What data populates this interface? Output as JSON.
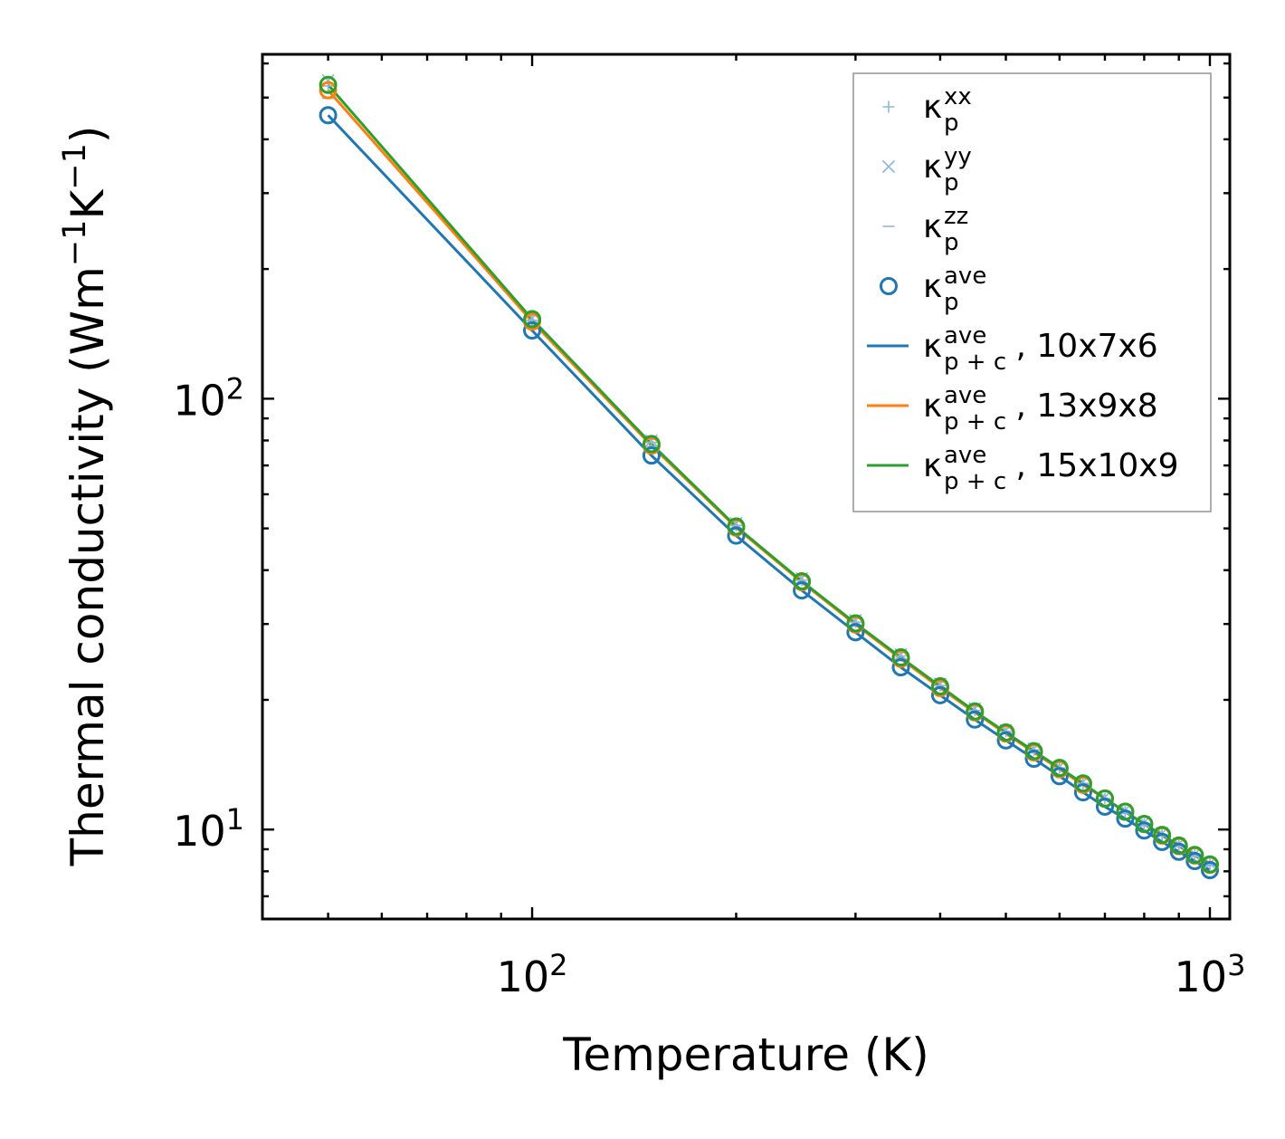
{
  "chart_data": {
    "type": "line",
    "title": "",
    "xlabel": "Temperature (K)",
    "ylabel_parts": {
      "main": "Thermal conductivity (Wm",
      "exp1": "−1",
      "mid": "K",
      "exp2": "−1",
      "close": ")"
    },
    "xscale": "log",
    "yscale": "log",
    "xlim": [
      40,
      1070
    ],
    "ylim": [
      6.2,
      630
    ],
    "x_ticks": [
      {
        "value": 100,
        "base": "10",
        "exp": "2"
      },
      {
        "value": 1000,
        "base": "10",
        "exp": "3"
      }
    ],
    "y_ticks": [
      {
        "value": 10,
        "base": "10",
        "exp": "1"
      },
      {
        "value": 100,
        "base": "10",
        "exp": "2"
      }
    ],
    "x": [
      50,
      100,
      150,
      200,
      250,
      300,
      350,
      400,
      450,
      500,
      550,
      600,
      650,
      700,
      750,
      800,
      850,
      900,
      950,
      1000
    ],
    "markers": [
      {
        "name": "kappa_p_xx",
        "marker": "plus",
        "color": "#8fb7d9",
        "values": [
          532,
          152,
          79.2,
          50.8,
          37.9,
          30.3,
          25.3,
          21.6,
          18.9,
          16.9,
          15.3,
          13.9,
          12.8,
          11.8,
          11.0,
          10.3,
          9.74,
          9.2,
          8.73,
          8.31
        ]
      },
      {
        "name": "kappa_p_yy",
        "marker": "x",
        "color": "#8fb7d9",
        "values": [
          548,
          154,
          80.0,
          51.4,
          38.3,
          30.6,
          25.5,
          21.8,
          19.1,
          17.0,
          15.4,
          14.0,
          12.9,
          11.9,
          11.1,
          10.4,
          9.8,
          9.26,
          8.78,
          8.35
        ]
      },
      {
        "name": "kappa_p_zz",
        "marker": "dash",
        "color": "#8fb7d9",
        "values": [
          498,
          147,
          77.5,
          49.9,
          37.3,
          29.8,
          24.9,
          21.3,
          18.7,
          16.7,
          15.1,
          13.8,
          12.7,
          11.7,
          10.9,
          10.2,
          9.65,
          9.12,
          8.66,
          8.24
        ]
      },
      {
        "name": "kappa_p_ave",
        "marker": "circle",
        "color": "#1f77b4",
        "values": [
          455,
          144,
          73.8,
          48.1,
          35.9,
          28.7,
          23.8,
          20.5,
          18.0,
          16.1,
          14.6,
          13.3,
          12.2,
          11.3,
          10.6,
          9.95,
          9.36,
          8.88,
          8.45,
          8.05
        ]
      },
      {
        "name": "kappa_p_ave_orange",
        "marker": "circle",
        "color": "#ff7f0e",
        "values": [
          520,
          151,
          77.8,
          50.2,
          37.5,
          29.9,
          24.9,
          21.3,
          18.7,
          16.7,
          15.1,
          13.8,
          12.7,
          11.8,
          11.0,
          10.3,
          9.68,
          9.15,
          8.7,
          8.28
        ]
      },
      {
        "name": "kappa_p_ave_green",
        "marker": "circle",
        "color": "#2ca02c",
        "values": [
          535,
          153,
          78.5,
          50.5,
          37.7,
          30.1,
          25.1,
          21.5,
          18.8,
          16.8,
          15.2,
          13.9,
          12.8,
          11.8,
          11.0,
          10.3,
          9.72,
          9.18,
          8.73,
          8.3
        ]
      }
    ],
    "series": [
      {
        "name": "10x7x6",
        "color": "#1f77b4",
        "values": [
          455,
          144,
          73.8,
          48.1,
          35.9,
          28.7,
          23.8,
          20.5,
          18.0,
          16.1,
          14.6,
          13.3,
          12.2,
          11.3,
          10.6,
          9.95,
          9.36,
          8.88,
          8.45,
          8.05
        ]
      },
      {
        "name": "13x9x8",
        "color": "#ff7f0e",
        "values": [
          520,
          151,
          77.8,
          50.2,
          37.5,
          29.9,
          24.9,
          21.3,
          18.7,
          16.7,
          15.1,
          13.8,
          12.7,
          11.8,
          11.0,
          10.3,
          9.68,
          9.15,
          8.7,
          8.28
        ]
      },
      {
        "name": "15x10x9",
        "color": "#2ca02c",
        "values": [
          535,
          153,
          78.5,
          50.5,
          37.7,
          30.1,
          25.1,
          21.5,
          18.8,
          16.8,
          15.2,
          13.9,
          12.8,
          11.8,
          11.0,
          10.3,
          9.72,
          9.18,
          8.73,
          8.3
        ]
      }
    ],
    "legend": {
      "placement": "top-right",
      "entries": [
        {
          "glyph": "plus",
          "color": "#8fb7d9",
          "kappa": "κ",
          "sub": "p",
          "sup": "xx",
          "suffix": ""
        },
        {
          "glyph": "x",
          "color": "#8fb7d9",
          "kappa": "κ",
          "sub": "p",
          "sup": "yy",
          "suffix": ""
        },
        {
          "glyph": "dash",
          "color": "#8fb7d9",
          "kappa": "κ",
          "sub": "p",
          "sup": "zz",
          "suffix": ""
        },
        {
          "glyph": "circle",
          "color": "#1f77b4",
          "kappa": "κ",
          "sub": "p",
          "sup": "ave",
          "suffix": ""
        },
        {
          "glyph": "line",
          "color": "#1f77b4",
          "kappa": "κ",
          "sub": "p + c",
          "sup": "ave",
          "suffix": ", 10x7x6"
        },
        {
          "glyph": "line",
          "color": "#ff7f0e",
          "kappa": "κ",
          "sub": "p + c",
          "sup": "ave",
          "suffix": ", 13x9x8"
        },
        {
          "glyph": "line",
          "color": "#2ca02c",
          "kappa": "κ",
          "sub": "p + c",
          "sup": "ave",
          "suffix": ", 15x10x9"
        }
      ]
    }
  }
}
